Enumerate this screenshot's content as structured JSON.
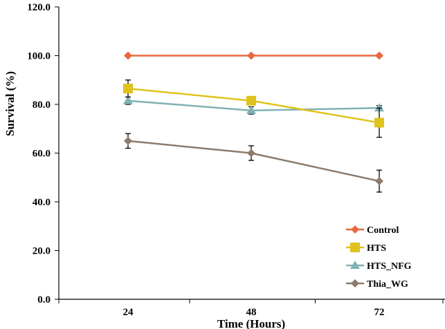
{
  "chart_data": {
    "type": "line",
    "title": "",
    "xlabel": "Time (Hours)",
    "ylabel": "Survival (%)",
    "categories": [
      "24",
      "48",
      "72"
    ],
    "ylim": [
      0,
      120
    ],
    "yticks": [
      "0.0",
      "20.0",
      "40.0",
      "60.0",
      "80.0",
      "100.0",
      "120.0"
    ],
    "grid": false,
    "legend_position": "bottom-right",
    "series": [
      {
        "name": "Control",
        "values": [
          100.0,
          100.0,
          100.0
        ],
        "errors": [
          0,
          0,
          0
        ],
        "color": "#E8693F",
        "marker": "diamond"
      },
      {
        "name": "HTS",
        "values": [
          86.5,
          81.5,
          72.5
        ],
        "errors": [
          3.5,
          1.5,
          6.0
        ],
        "color": "#E0C21C",
        "marker": "square"
      },
      {
        "name": "HTS_NFG",
        "values": [
          81.5,
          77.5,
          78.5
        ],
        "errors": [
          1.5,
          1.5,
          1.0
        ],
        "color": "#7FB1B3",
        "marker": "triangle"
      },
      {
        "name": "Thia_WG",
        "values": [
          65.0,
          60.0,
          48.5
        ],
        "errors": [
          3.0,
          3.0,
          4.5
        ],
        "color": "#8C7B6B",
        "marker": "diamond"
      }
    ]
  }
}
